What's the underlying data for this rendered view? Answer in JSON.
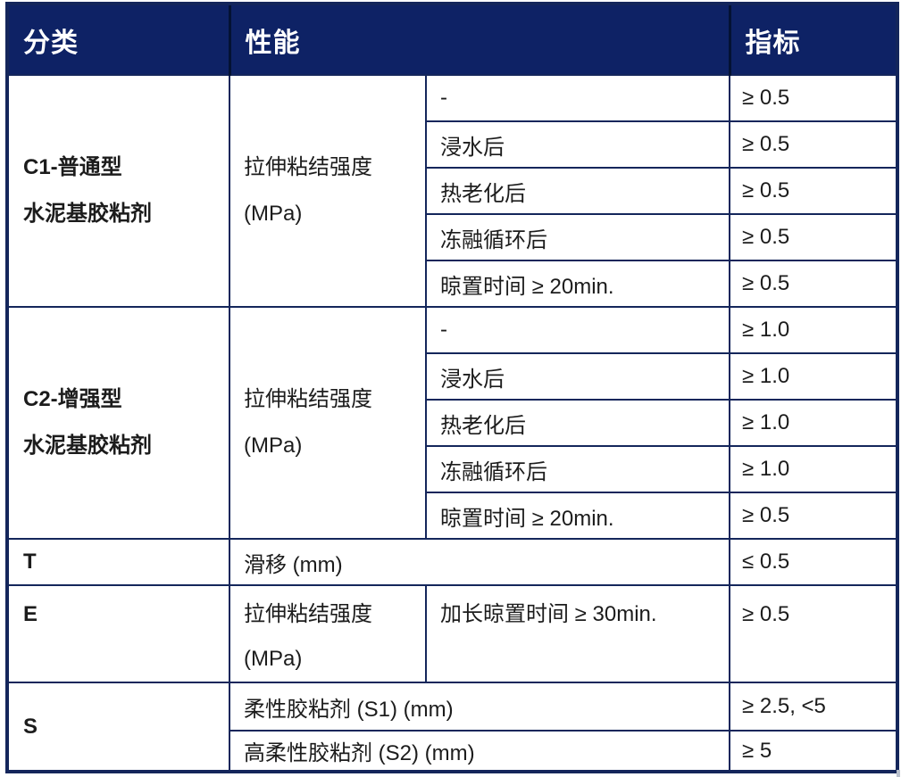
{
  "header": {
    "classification": "分类",
    "performance": "性能",
    "indicator": "指标"
  },
  "groups": {
    "c1": {
      "category_line1": "C1-普通型",
      "category_line2": "水泥基胶粘剂",
      "property_line1": "拉伸粘结强度",
      "property_line2": "(MPa)",
      "rows": [
        {
          "condition": "-",
          "value": "≥ 0.5"
        },
        {
          "condition": "浸水后",
          "value": "≥ 0.5"
        },
        {
          "condition": "热老化后",
          "value": "≥ 0.5"
        },
        {
          "condition": "冻融循环后",
          "value": "≥ 0.5"
        },
        {
          "condition": "晾置时间 ≥ 20min.",
          "value": "≥ 0.5"
        }
      ]
    },
    "c2": {
      "category_line1": "C2-增强型",
      "category_line2": "水泥基胶粘剂",
      "property_line1": "拉伸粘结强度",
      "property_line2": "(MPa)",
      "rows": [
        {
          "condition": "-",
          "value": "≥ 1.0"
        },
        {
          "condition": "浸水后",
          "value": "≥ 1.0"
        },
        {
          "condition": "热老化后",
          "value": "≥ 1.0"
        },
        {
          "condition": "冻融循环后",
          "value": "≥ 1.0"
        },
        {
          "condition": "晾置时间 ≥ 20min.",
          "value": "≥ 0.5"
        }
      ]
    },
    "t": {
      "category": "T",
      "property": "滑移 (mm)",
      "value": "≤ 0.5"
    },
    "e": {
      "category": "E",
      "property_line1": "拉伸粘结强度",
      "property_line2": "(MPa)",
      "condition": "加长晾置时间 ≥ 30min.",
      "value": "≥ 0.5"
    },
    "s": {
      "category": "S",
      "rows": [
        {
          "property": "柔性胶粘剂 (S1) (mm)",
          "value": "≥ 2.5, <5"
        },
        {
          "property": "高柔性胶粘剂 (S2) (mm)",
          "value": "≥ 5"
        }
      ]
    }
  },
  "colors": {
    "header_bg": "#0e2265",
    "header_text": "#ffffff",
    "border": "#14265b",
    "body_text": "#1c1c1c"
  }
}
